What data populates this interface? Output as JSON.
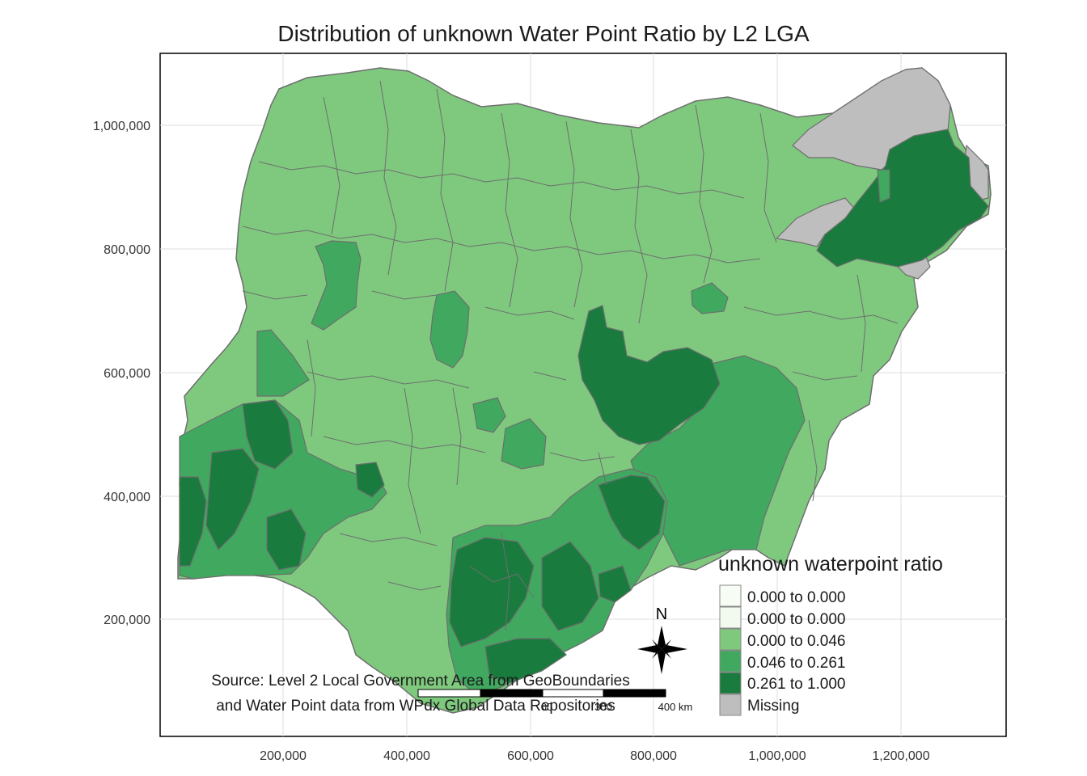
{
  "title": "Distribution of unknown Water Point Ratio by L2 LGA",
  "axes": {
    "x_ticks": [
      "200,000",
      "400,000",
      "600,000",
      "800,000",
      "1,000,000",
      "1,200,000"
    ],
    "y_ticks": [
      "200,000",
      "400,000",
      "600,000",
      "800,000",
      "1,000,000"
    ]
  },
  "legend": {
    "title": "unknown waterpoint ratio",
    "entries": [
      {
        "label": "0.000 to 0.000",
        "color": "#f7fcf5"
      },
      {
        "label": "0.000 to 0.000",
        "color": "#f2faef"
      },
      {
        "label": "0.000 to 0.046",
        "color": "#7fc97f"
      },
      {
        "label": "0.046 to 0.261",
        "color": "#41a85f"
      },
      {
        "label": "0.261 to 1.000",
        "color": "#1a7b3e"
      },
      {
        "label": "Missing",
        "color": "#bebebe"
      }
    ]
  },
  "north_arrow": {
    "label": "N"
  },
  "scale_bar": {
    "visible_label": "400 km",
    "partial_labels": [
      "00",
      "300"
    ]
  },
  "source": {
    "line1": "Source: Level 2 Local Government Area from GeoBoundaries",
    "line2": "and Water Point data from WPdx Global Data Repositories"
  },
  "colors": {
    "light": "#7fc97f",
    "mid": "#41a85f",
    "dark": "#1a7b3e",
    "missing": "#bebebe",
    "border": "#6e6e6e",
    "grid": "#dcdcdc"
  }
}
